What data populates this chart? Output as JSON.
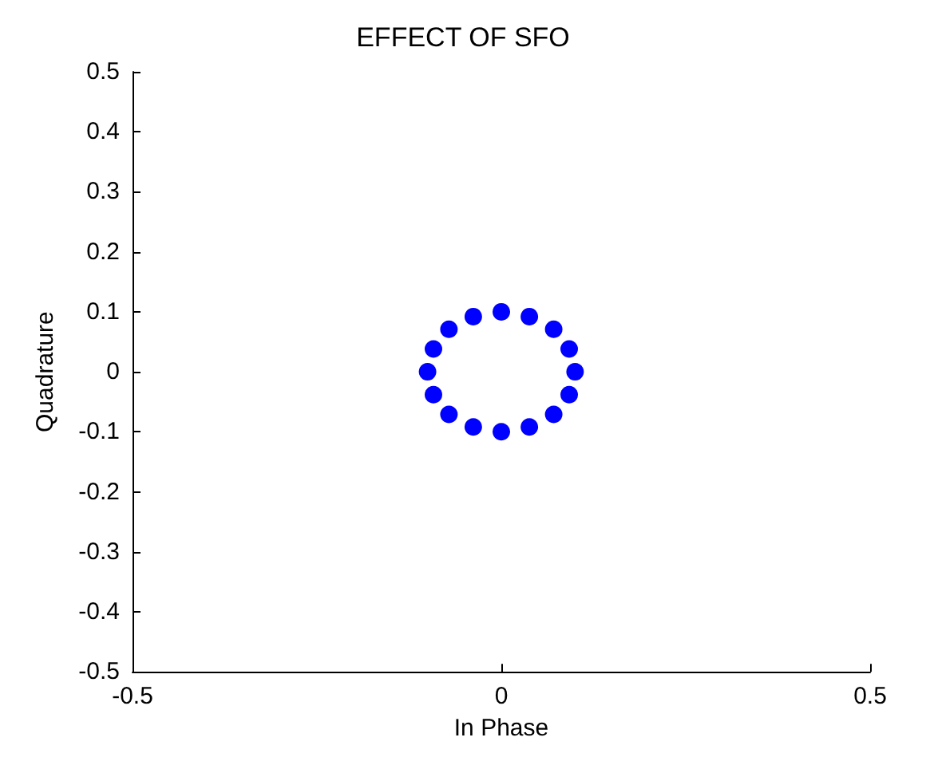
{
  "chart_data": {
    "type": "scatter",
    "title": "EFFECT OF SFO",
    "xlabel": "In Phase",
    "ylabel": "Quadrature",
    "x": [
      0,
      0.038,
      0.071,
      0.092,
      0.1,
      0.092,
      0.071,
      0.038,
      0,
      -0.038,
      -0.071,
      -0.092,
      -0.1,
      -0.092,
      -0.071,
      -0.038
    ],
    "series": [
      {
        "color": "#0000ff",
        "values": [
          0.1,
          0.092,
          0.071,
          0.038,
          0,
          -0.038,
          -0.071,
          -0.092,
          -0.1,
          -0.092,
          -0.071,
          -0.038,
          0,
          0.038,
          0.071,
          0.092
        ]
      }
    ],
    "xlim": [
      -0.5,
      0.5
    ],
    "xticks": [
      -0.5,
      0,
      0.5
    ],
    "ylim": [
      -0.5,
      0.5
    ],
    "yticks": [
      -0.5,
      -0.4,
      -0.3,
      -0.2,
      -0.1,
      0,
      0.1,
      0.2,
      0.3,
      0.4,
      0.5
    ],
    "marker": "circle",
    "grid": false
  }
}
